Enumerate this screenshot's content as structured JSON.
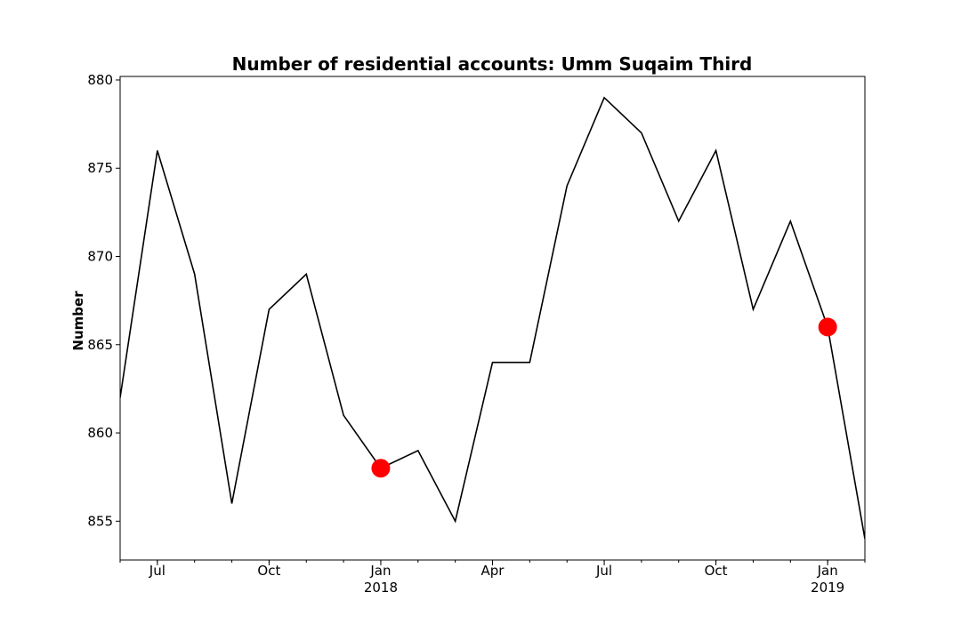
{
  "chart_data": {
    "type": "line",
    "title": "Number of residential accounts: Umm Suqaim Third",
    "xlabel": "",
    "ylabel": "Number",
    "ylim": [
      852.8,
      880.2
    ],
    "xlim": [
      "2017-06-01",
      "2019-02-01"
    ],
    "grid": false,
    "legend": "none",
    "line_color": "#000000",
    "marker_color": "#ff0000",
    "y_ticks": [
      855,
      860,
      865,
      870,
      875,
      880
    ],
    "x_ticks": [
      {
        "date": "2017-07-01",
        "label": "Jul",
        "sublabel": ""
      },
      {
        "date": "2017-10-01",
        "label": "Oct",
        "sublabel": ""
      },
      {
        "date": "2018-01-01",
        "label": "Jan",
        "sublabel": "2018"
      },
      {
        "date": "2018-04-01",
        "label": "Apr",
        "sublabel": ""
      },
      {
        "date": "2018-07-01",
        "label": "Jul",
        "sublabel": ""
      },
      {
        "date": "2018-10-01",
        "label": "Oct",
        "sublabel": ""
      },
      {
        "date": "2019-01-01",
        "label": "Jan",
        "sublabel": "2019"
      }
    ],
    "x": [
      "2017-06-01",
      "2017-07-01",
      "2017-08-01",
      "2017-09-01",
      "2017-10-01",
      "2017-11-01",
      "2017-12-01",
      "2018-01-01",
      "2018-02-01",
      "2018-03-01",
      "2018-04-01",
      "2018-05-01",
      "2018-06-01",
      "2018-07-01",
      "2018-08-01",
      "2018-09-01",
      "2018-10-01",
      "2018-11-01",
      "2018-12-01",
      "2019-01-01",
      "2019-02-01"
    ],
    "series": [
      {
        "values": [
          862,
          876,
          869,
          856,
          867,
          869,
          861,
          858,
          859,
          855,
          864,
          864,
          874,
          879,
          877,
          872,
          876,
          867,
          872,
          866,
          854
        ]
      }
    ],
    "highlighted_points": [
      {
        "x": "2018-01-01",
        "y": 858
      },
      {
        "x": "2019-01-01",
        "y": 866
      }
    ]
  }
}
